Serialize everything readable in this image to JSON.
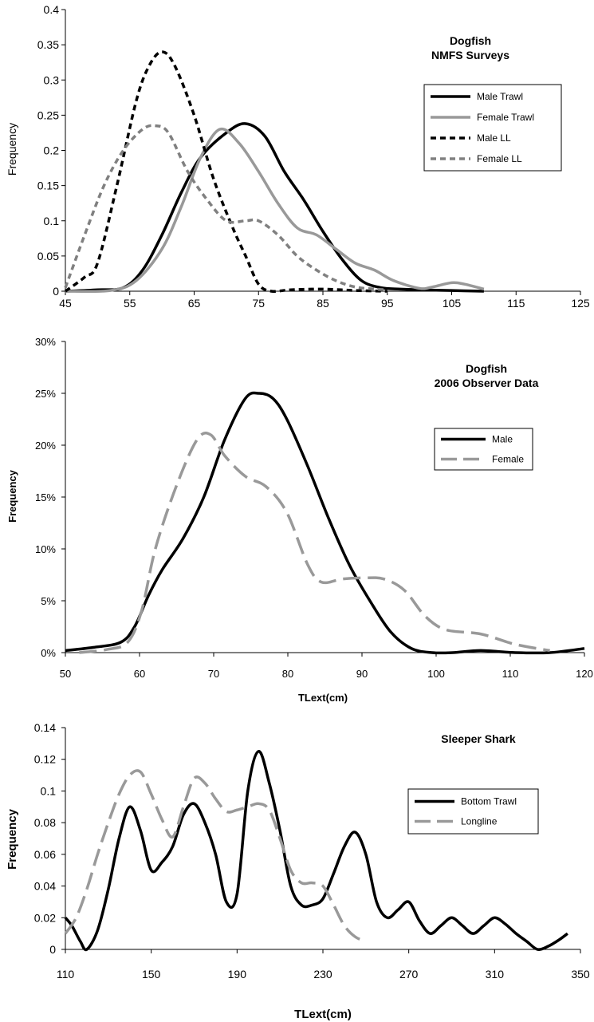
{
  "chart_data": [
    {
      "type": "line",
      "title": "Dogfish",
      "subtitle": "NMFS Surveys",
      "xlabel": "",
      "ylabel": "Frequency",
      "xlim": [
        45,
        125
      ],
      "ylim": [
        0,
        0.4
      ],
      "xticks": [
        "45",
        "55",
        "65",
        "75",
        "85",
        "95",
        "105",
        "115",
        "125"
      ],
      "yticks": [
        "0",
        "0.05",
        "0.1",
        "0.15",
        "0.2",
        "0.25",
        "0.3",
        "0.35",
        "0.4"
      ],
      "grid": false,
      "legend_position": "top-right",
      "series": [
        {
          "name": "Male Trawl",
          "color": "#000000",
          "dash": "solid",
          "x": [
            45,
            50,
            54,
            57,
            60,
            63,
            66,
            70,
            73,
            76,
            79,
            82,
            85,
            88,
            91,
            94,
            97,
            100,
            105,
            110
          ],
          "y": [
            0,
            0.002,
            0.005,
            0.03,
            0.08,
            0.14,
            0.19,
            0.225,
            0.238,
            0.22,
            0.17,
            0.13,
            0.085,
            0.045,
            0.015,
            0.005,
            0.003,
            0.002,
            0.001,
            0
          ]
        },
        {
          "name": "Female Trawl",
          "color": "#999999",
          "dash": "solid",
          "x": [
            45,
            52,
            56,
            60,
            63,
            66,
            69,
            72,
            75,
            78,
            81,
            84,
            87,
            90,
            93,
            96,
            100,
            102,
            105,
            107,
            110
          ],
          "y": [
            0,
            0.001,
            0.015,
            0.06,
            0.12,
            0.19,
            0.23,
            0.21,
            0.17,
            0.125,
            0.09,
            0.08,
            0.06,
            0.04,
            0.03,
            0.015,
            0.004,
            0.006,
            0.012,
            0.01,
            0.003
          ]
        },
        {
          "name": "Male LL",
          "color": "#000000",
          "dash": "dashed",
          "x": [
            45,
            48,
            50,
            53,
            56,
            58,
            60,
            62,
            65,
            68,
            71,
            73,
            75,
            77,
            80,
            85,
            90,
            95
          ],
          "y": [
            0,
            0.02,
            0.04,
            0.15,
            0.27,
            0.32,
            0.34,
            0.32,
            0.25,
            0.16,
            0.09,
            0.05,
            0.01,
            0,
            0.002,
            0.003,
            0.001,
            0
          ]
        },
        {
          "name": "Female LL",
          "color": "#808080",
          "dash": "dashed",
          "x": [
            45,
            48,
            51,
            54,
            57,
            59,
            61,
            64,
            67,
            70,
            73,
            75,
            78,
            81,
            84,
            87,
            90,
            93,
            95
          ],
          "y": [
            0.005,
            0.08,
            0.15,
            0.2,
            0.23,
            0.235,
            0.225,
            0.17,
            0.13,
            0.1,
            0.1,
            0.1,
            0.08,
            0.05,
            0.03,
            0.015,
            0.006,
            0.003,
            0.002
          ]
        }
      ]
    },
    {
      "type": "line",
      "title": "Dogfish",
      "subtitle": "2006 Observer  Data",
      "xlabel": "TLext(cm)",
      "ylabel": "Frequency",
      "xlim": [
        50,
        125
      ],
      "ylim": [
        0,
        0.3
      ],
      "xticks": [
        "50",
        "60",
        "70",
        "80",
        "90",
        "100",
        "110",
        "120"
      ],
      "yticks": [
        "0%",
        "5%",
        "10%",
        "15%",
        "20%",
        "25%",
        "30%"
      ],
      "grid": false,
      "legend_position": "right",
      "series": [
        {
          "name": "Male",
          "color": "#000000",
          "dash": "solid",
          "x": [
            50,
            54,
            58,
            60,
            62,
            64,
            67,
            70,
            73,
            76,
            78,
            80,
            82,
            85,
            88,
            91,
            94,
            97,
            100,
            103,
            106,
            110,
            115,
            120,
            125
          ],
          "y": [
            0.002,
            0.005,
            0.01,
            0.025,
            0.055,
            0.08,
            0.11,
            0.15,
            0.205,
            0.245,
            0.25,
            0.245,
            0.225,
            0.18,
            0.13,
            0.085,
            0.05,
            0.02,
            0.004,
            0,
            0,
            0.002,
            0,
            0,
            0.004
          ]
        },
        {
          "name": "Female",
          "color": "#999999",
          "dash": "dashed",
          "x": [
            52,
            56,
            59,
            61,
            63,
            66,
            69,
            71,
            73,
            76,
            79,
            82,
            85,
            87,
            90,
            93,
            96,
            99,
            102,
            105,
            110,
            115,
            120
          ],
          "y": [
            0,
            0.003,
            0.01,
            0.04,
            0.1,
            0.16,
            0.205,
            0.21,
            0.19,
            0.17,
            0.16,
            0.135,
            0.085,
            0.068,
            0.071,
            0.072,
            0.071,
            0.06,
            0.035,
            0.022,
            0.018,
            0.008,
            0.002
          ]
        }
      ]
    },
    {
      "type": "line",
      "title": "Sleeper Shark",
      "subtitle": "",
      "xlabel": "TLext(cm)",
      "ylabel": "Frequency",
      "xlim": [
        110,
        350
      ],
      "ylim": [
        0,
        0.14
      ],
      "xticks": [
        "110",
        "150",
        "190",
        "230",
        "270",
        "310",
        "350"
      ],
      "yticks": [
        "0",
        "0.02",
        "0.04",
        "0.06",
        "0.08",
        "0.1",
        "0.12",
        "0.14"
      ],
      "grid": false,
      "legend_position": "right",
      "series": [
        {
          "name": "Bottom Trawl",
          "color": "#000000",
          "dash": "solid",
          "x": [
            110,
            113,
            117,
            120,
            125,
            130,
            135,
            140,
            145,
            150,
            155,
            160,
            165,
            170,
            175,
            180,
            185,
            190,
            195,
            200,
            205,
            210,
            215,
            220,
            225,
            230,
            235,
            240,
            245,
            250,
            255,
            260,
            265,
            270,
            275,
            280,
            285,
            290,
            295,
            300,
            305,
            310,
            315,
            320,
            325,
            330,
            335,
            340,
            344
          ],
          "y": [
            0.02,
            0.015,
            0.005,
            0,
            0.012,
            0.038,
            0.07,
            0.09,
            0.075,
            0.05,
            0.055,
            0.065,
            0.085,
            0.092,
            0.08,
            0.06,
            0.03,
            0.035,
            0.1,
            0.125,
            0.105,
            0.075,
            0.04,
            0.028,
            0.028,
            0.032,
            0.048,
            0.065,
            0.074,
            0.06,
            0.03,
            0.02,
            0.025,
            0.03,
            0.018,
            0.01,
            0.015,
            0.02,
            0.015,
            0.01,
            0.015,
            0.02,
            0.016,
            0.01,
            0.005,
            0,
            0.002,
            0.006,
            0.01
          ]
        },
        {
          "name": "Longline",
          "color": "#999999",
          "dash": "dashed",
          "x": [
            110,
            115,
            120,
            125,
            130,
            135,
            140,
            145,
            150,
            155,
            160,
            165,
            170,
            175,
            180,
            185,
            190,
            195,
            200,
            205,
            210,
            215,
            220,
            225,
            230,
            235,
            240,
            245,
            250
          ],
          "y": [
            0.01,
            0.02,
            0.038,
            0.06,
            0.08,
            0.098,
            0.11,
            0.112,
            0.098,
            0.082,
            0.071,
            0.09,
            0.108,
            0.105,
            0.095,
            0.087,
            0.088,
            0.09,
            0.092,
            0.088,
            0.07,
            0.05,
            0.042,
            0.042,
            0.04,
            0.028,
            0.015,
            0.008,
            0.005
          ]
        }
      ]
    }
  ]
}
